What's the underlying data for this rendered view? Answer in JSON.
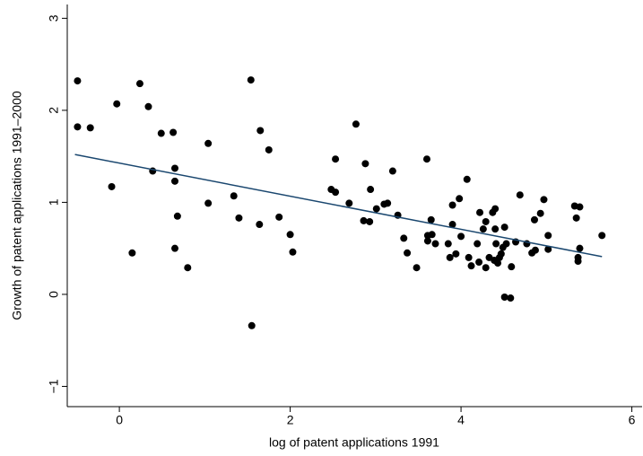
{
  "chart_data": {
    "type": "scatter",
    "x_label": "log of patent applications 1991",
    "y_label": "Growth of patent applications 1991–2000",
    "xlim": [
      -0.61,
      6.12
    ],
    "ylim": [
      -1.22,
      3.15
    ],
    "xticks": [
      0,
      2,
      4,
      6
    ],
    "yticks": [
      {
        "value": -1,
        "label": "−1"
      },
      0,
      1,
      2,
      3
    ],
    "color": "#000000",
    "x": [
      -0.49,
      -0.49,
      -0.34,
      -0.03,
      -0.09,
      0.15,
      0.24,
      0.34,
      0.39,
      0.49,
      0.63,
      0.65,
      0.65,
      0.68,
      0.65,
      0.8,
      1.04,
      1.04,
      1.34,
      1.4,
      1.54,
      1.55,
      1.65,
      1.64,
      1.75,
      1.87,
      2.0,
      2.03,
      2.48,
      2.53,
      2.53,
      2.69,
      2.77,
      2.88,
      2.86,
      2.93,
      2.94,
      3.01,
      3.1,
      3.14,
      3.2,
      3.26,
      3.33,
      3.37,
      3.48,
      3.6,
      3.61,
      3.61,
      3.65,
      3.66,
      3.7,
      3.85,
      3.87,
      3.9,
      3.9,
      3.94,
      3.98,
      4.0,
      4.07,
      4.09,
      4.12,
      4.19,
      4.21,
      4.22,
      4.26,
      4.29,
      4.29,
      4.33,
      4.37,
      4.39,
      4.4,
      4.4,
      4.41,
      4.43,
      4.45,
      4.47,
      4.49,
      4.51,
      4.53,
      4.51,
      4.58,
      4.59,
      4.64,
      4.69,
      4.77,
      4.83,
      4.86,
      4.87,
      4.93,
      4.97,
      5.02,
      5.02,
      5.33,
      5.35,
      5.37,
      5.37,
      5.39,
      5.39,
      5.65
    ],
    "y": [
      2.32,
      1.82,
      1.81,
      2.07,
      1.17,
      0.45,
      2.29,
      2.04,
      1.34,
      1.75,
      1.76,
      1.37,
      1.23,
      0.85,
      0.5,
      0.29,
      1.64,
      0.99,
      1.07,
      0.83,
      2.33,
      -0.34,
      1.78,
      0.76,
      1.57,
      0.84,
      0.65,
      0.46,
      1.14,
      1.11,
      1.47,
      0.99,
      1.85,
      1.42,
      0.8,
      0.79,
      1.14,
      0.93,
      0.98,
      0.99,
      1.34,
      0.86,
      0.61,
      0.45,
      0.29,
      1.47,
      0.64,
      0.58,
      0.81,
      0.65,
      0.55,
      0.55,
      0.4,
      0.97,
      0.76,
      0.44,
      1.04,
      0.63,
      1.25,
      0.4,
      0.31,
      0.55,
      0.35,
      0.89,
      0.71,
      0.79,
      0.29,
      0.4,
      0.89,
      0.37,
      0.93,
      0.71,
      0.55,
      0.34,
      0.4,
      0.44,
      0.51,
      0.73,
      0.55,
      -0.03,
      -0.04,
      0.3,
      0.57,
      1.08,
      0.55,
      0.45,
      0.81,
      0.48,
      0.88,
      1.03,
      0.49,
      0.64,
      0.96,
      0.83,
      0.4,
      0.36,
      0.95,
      0.5,
      0.64
    ],
    "fit": {
      "color": "#1a476f",
      "x": [
        -0.52,
        5.65
      ],
      "y": [
        1.52,
        0.41
      ]
    }
  }
}
